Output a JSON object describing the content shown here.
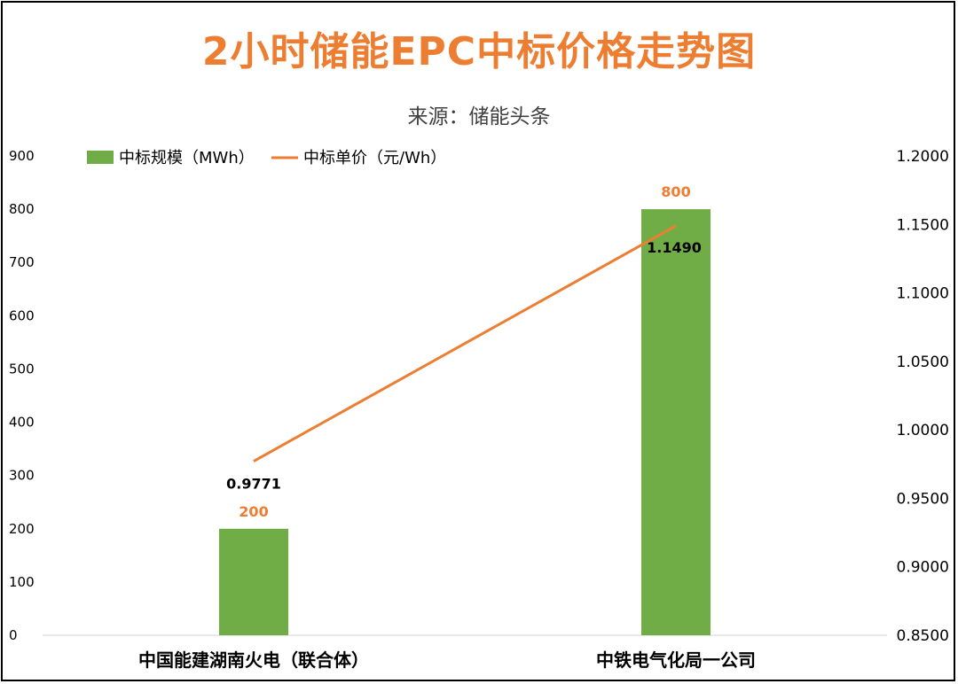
{
  "chart_data": {
    "type": "bar",
    "title": "2小时储能EPC中标价格走势图",
    "subtitle": "来源：储能头条",
    "categories": [
      "中国能建湖南火电（联合体）",
      "中铁电气化局一公司"
    ],
    "series": [
      {
        "name": "中标规模（MWh）",
        "type": "bar",
        "axis": "left",
        "values": [
          200,
          800
        ],
        "labels": [
          "200",
          "800"
        ],
        "color": "#70AD47"
      },
      {
        "name": "中标单价（元/Wh）",
        "type": "line",
        "axis": "right",
        "values": [
          0.9771,
          1.149
        ],
        "labels": [
          "0.9771",
          "1.1490"
        ],
        "color": "#ED7D31"
      }
    ],
    "y_left": {
      "min": 0,
      "max": 900,
      "step": 100,
      "ticks": [
        "0",
        "100",
        "200",
        "300",
        "400",
        "500",
        "600",
        "700",
        "800",
        "900"
      ]
    },
    "y_right": {
      "min": 0.85,
      "max": 1.2,
      "step": 0.05,
      "ticks": [
        "0.8500",
        "0.9000",
        "0.9500",
        "1.0000",
        "1.0500",
        "1.1000",
        "1.1500",
        "1.2000"
      ]
    },
    "legend_position": "top-left",
    "grid": false
  }
}
